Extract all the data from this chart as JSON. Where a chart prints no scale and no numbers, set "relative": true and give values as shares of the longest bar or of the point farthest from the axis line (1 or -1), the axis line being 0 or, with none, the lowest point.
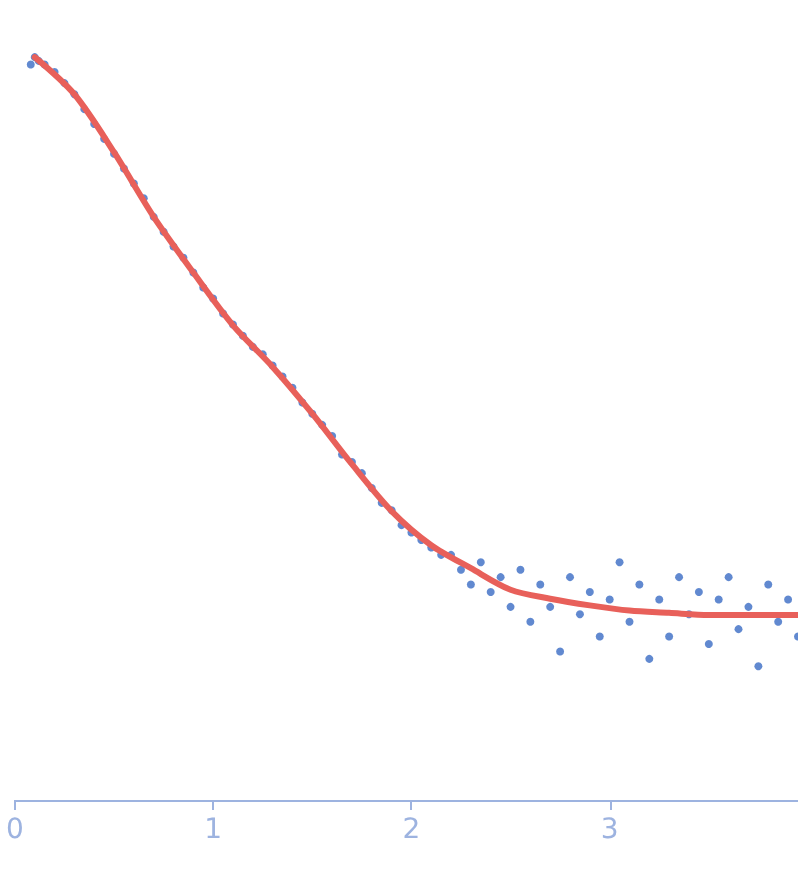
{
  "chart_data": {
    "type": "scatter",
    "relative": true,
    "xlim": [
      0,
      3.95
    ],
    "xticks": [
      0,
      1,
      2,
      3
    ],
    "grid": false,
    "series": [
      {
        "marker": "circle",
        "color": "#3a6cc4",
        "x": [
          0.08,
          0.1,
          0.12,
          0.15,
          0.2,
          0.25,
          0.3,
          0.35,
          0.4,
          0.45,
          0.5,
          0.55,
          0.6,
          0.65,
          0.7,
          0.75,
          0.8,
          0.85,
          0.9,
          0.95,
          1.0,
          1.05,
          1.1,
          1.15,
          1.2,
          1.25,
          1.3,
          1.35,
          1.4,
          1.45,
          1.5,
          1.55,
          1.6,
          1.65,
          1.7,
          1.75,
          1.8,
          1.85,
          1.9,
          1.95,
          2.0,
          2.05,
          2.1,
          2.15,
          2.2,
          2.25,
          2.3,
          2.35,
          2.4,
          2.45,
          2.5,
          2.55,
          2.6,
          2.65,
          2.7,
          2.75,
          2.8,
          2.85,
          2.9,
          2.95,
          3.0,
          3.05,
          3.1,
          3.15,
          3.2,
          3.25,
          3.3,
          3.35,
          3.4,
          3.45,
          3.5,
          3.55,
          3.6,
          3.65,
          3.7,
          3.75,
          3.8,
          3.85,
          3.9,
          3.95
        ],
        "values": [
          0.99,
          1.0,
          0.995,
          0.99,
          0.98,
          0.965,
          0.95,
          0.93,
          0.91,
          0.89,
          0.87,
          0.85,
          0.83,
          0.81,
          0.785,
          0.765,
          0.745,
          0.73,
          0.71,
          0.69,
          0.675,
          0.655,
          0.64,
          0.625,
          0.61,
          0.6,
          0.585,
          0.57,
          0.555,
          0.535,
          0.52,
          0.505,
          0.49,
          0.465,
          0.455,
          0.44,
          0.42,
          0.4,
          0.39,
          0.37,
          0.36,
          0.35,
          0.34,
          0.33,
          0.33,
          0.31,
          0.29,
          0.32,
          0.28,
          0.3,
          0.26,
          0.31,
          0.24,
          0.29,
          0.26,
          0.2,
          0.3,
          0.25,
          0.28,
          0.22,
          0.27,
          0.32,
          0.24,
          0.29,
          0.19,
          0.27,
          0.22,
          0.3,
          0.25,
          0.28,
          0.21,
          0.27,
          0.3,
          0.23,
          0.26,
          0.18,
          0.29,
          0.24,
          0.27,
          0.22
        ]
      },
      {
        "type": "line",
        "marker": "none",
        "line_style": "solid",
        "color": "#e8605a",
        "x": [
          0.1,
          0.3,
          0.5,
          0.7,
          0.9,
          1.1,
          1.3,
          1.5,
          1.7,
          1.9,
          2.1,
          2.3,
          2.5,
          2.7,
          2.9,
          3.1,
          3.3,
          3.5,
          3.7,
          3.95
        ],
        "values": [
          1.0,
          0.95,
          0.872,
          0.785,
          0.71,
          0.639,
          0.583,
          0.52,
          0.452,
          0.389,
          0.343,
          0.312,
          0.283,
          0.271,
          0.262,
          0.255,
          0.252,
          0.249,
          0.249,
          0.249
        ]
      }
    ]
  }
}
